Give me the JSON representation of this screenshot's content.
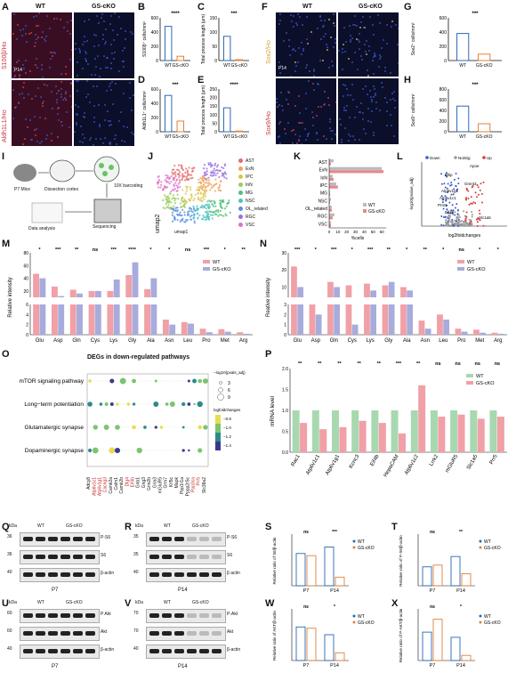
{
  "panel_letters": [
    "A",
    "B",
    "C",
    "D",
    "E",
    "F",
    "G",
    "H",
    "I",
    "J",
    "K",
    "L",
    "M",
    "N",
    "O",
    "P",
    "Q",
    "R",
    "S",
    "T",
    "U",
    "V",
    "W",
    "X"
  ],
  "groups": {
    "wt": "WT",
    "cko": "GS-cKO"
  },
  "colors": {
    "wt": "#5ba874",
    "cko": "#e48a8f",
    "wt_bar": "#f0a0a6",
    "cko_bar": "#a7acdc",
    "stain_red": "#c8303a",
    "stain_blue": "#2c4aa8"
  },
  "panel_a": {
    "age": "P14",
    "row1_label": "S100β/Ho",
    "row2_label": "Aldh1L1/Ho"
  },
  "panel_f": {
    "age": "P14",
    "row1_label": "Sox2/Ho",
    "row2_label": "Sox9/Ho"
  },
  "panel_i": {
    "mice": "P7 Mice",
    "dissection": "Dissection cortex",
    "barcoding": "10X barcoding",
    "sequencing": "Sequencing",
    "analysis": "Data analysis"
  },
  "panel_j": {
    "axis_x": "umap1",
    "axis_y": "umap2",
    "clusters": [
      "AST",
      "ExN",
      "IPC",
      "InN",
      "MG",
      "NSC",
      "OL_related",
      "RGC",
      "VSC"
    ],
    "cluster_colors": [
      "#e46b6b",
      "#f0a35a",
      "#d8c84a",
      "#9ccc5a",
      "#4fbf7a",
      "#4bc2c2",
      "#5a8fe0",
      "#9a6fe0",
      "#e070c8"
    ]
  },
  "panel_k": {
    "xlabel": "%cells",
    "ticks": [
      "0",
      "10",
      "20",
      "30",
      "40",
      "50",
      "60"
    ],
    "legend": [
      "WT",
      "GS-cKO"
    ],
    "categories": [
      "AST",
      "ExN",
      "InN",
      "IPC",
      "MG",
      "NSC",
      "OL_related",
      "RGC",
      "VSC"
    ]
  },
  "panel_l": {
    "legend": [
      "Down",
      "NotSig",
      "Up"
    ],
    "xlabel": "log2foldchanges",
    "ylabel": "-log10(pvalue_adj)",
    "genes": [
      "Apoe",
      "Bllip",
      "Gmnt3",
      "Atp6v1g1",
      "Atp6v1c1",
      "Prm5",
      "Eif4b",
      "Slc1a5"
    ]
  },
  "panel_m": {
    "ylabel": "Relative intensity",
    "legend": [
      "WT",
      "GS-cKO"
    ],
    "categories": [
      "Glu",
      "Asp",
      "Gln",
      "Cys",
      "Lys",
      "Gly",
      "Ala",
      "Asn",
      "Leu",
      "Pro",
      "Met",
      "Arg"
    ],
    "sig": [
      "*",
      "***",
      "**",
      "ns",
      "***",
      "****",
      "*",
      "*",
      "ns",
      "***",
      "*",
      "**"
    ],
    "yticks_top": [
      "20",
      "40",
      "60",
      "80"
    ],
    "yticks_bottom": [
      "0",
      "2",
      "4",
      "6"
    ]
  },
  "panel_n": {
    "ylabel": "Reative intensity",
    "legend": [
      "WT",
      "GS-cKO"
    ],
    "categories": [
      "Glu",
      "Asp",
      "Gln",
      "Cys",
      "Lys",
      "Gly",
      "Ala",
      "Asn",
      "Leu",
      "Pro",
      "Met",
      "Arg"
    ],
    "sig": [
      "***",
      "*",
      "***",
      "*",
      "***",
      "**",
      "*",
      "**",
      "*",
      "ns",
      "*",
      "*"
    ],
    "yticks_top": [
      "10",
      "20",
      "30"
    ],
    "yticks_bottom": [
      "0",
      "1",
      "2",
      "3"
    ]
  },
  "panel_o": {
    "title": "DEGs in down-regulated pathways",
    "pathways": [
      "mTOR signaling pathway",
      "Long−term potentiation",
      "Glutamatergic synapse",
      "Dopaminergic synapse"
    ],
    "genes": [
      "Adcy8",
      "Atp6v1c1",
      "Atp6v1g1",
      "Cacng3",
      "Camk2a",
      "Calm1",
      "Camk2b",
      "Dlg4",
      "Eif4b",
      "Gnb1",
      "Gng3",
      "Grin2b",
      "Gria3",
      "mGluR5",
      "Grm7",
      "Kif5c",
      "Mapk",
      "Ppp1r1a",
      "Pppp2r5c",
      "Ppp3ca",
      "Prr5",
      "Slc38a2"
    ],
    "red_genes": [
      "Atp6v1c1",
      "Atp6v1g1",
      "Cacng3",
      "Dlg4",
      "Eif4b",
      "Prr5",
      "Ppp3ca"
    ],
    "size_legend_title": "−log10(pvals_adj)",
    "size_legend": [
      "3",
      "6",
      "9"
    ],
    "color_legend_title": "logfoldchanges",
    "color_legend": [
      "−0.8",
      "−1.0",
      "−1.2",
      "−1.4"
    ]
  },
  "panel_p": {
    "ylabel": "mRNA level",
    "legend": [
      "WT",
      "GS-cKO"
    ],
    "genes": [
      "Rac1",
      "Atp6v1c1",
      "Atp6v1g1",
      "Kcnc3",
      "Eif4b",
      "HepaCAM",
      "Atp6v1c2",
      "Lrrk2",
      "mGluR5",
      "Slc1a5",
      "Prr5"
    ],
    "sig": [
      "**",
      "**",
      "**",
      "**",
      "**",
      "***",
      "**",
      "ns",
      "ns",
      "ns",
      "ns"
    ],
    "yticks": [
      "0.0",
      "0.5",
      "1.0",
      "1.5",
      "2.0"
    ]
  },
  "blots": {
    "q": {
      "age": "P7",
      "kda": "kDa",
      "bands": [
        {
          "kda": "36",
          "name": "P-S6"
        },
        {
          "kda": "36",
          "name": "S6"
        },
        {
          "kda": "40",
          "name": "β-actin"
        }
      ]
    },
    "r": {
      "age": "P14",
      "kda": "kDa",
      "bands": [
        {
          "kda": "35",
          "name": "P-S6"
        },
        {
          "kda": "35",
          "name": "S6"
        },
        {
          "kda": "40",
          "name": "β actin"
        }
      ]
    },
    "u": {
      "age": "P7",
      "kda": "kDa",
      "bands": [
        {
          "kda": "60",
          "name": "P Akt"
        },
        {
          "kda": "60",
          "name": "Akt"
        },
        {
          "kda": "40",
          "name": "β-actin"
        }
      ]
    },
    "v": {
      "age": "P14",
      "kda": "kDa",
      "bands": [
        {
          "kda": "70",
          "name": "P-Akt"
        },
        {
          "kda": "70",
          "name": "Akt"
        },
        {
          "kda": "40",
          "name": "β-actin"
        }
      ]
    }
  },
  "chart_data": [
    {
      "panel": "B",
      "type": "bar",
      "ylabel": "S100β⁺ cells/mm²",
      "categories": [
        "WT",
        "GS-cKO"
      ],
      "values": [
        480,
        60
      ],
      "ylim": [
        0,
        600
      ],
      "yticks": [
        "0",
        "200",
        "400",
        "600"
      ],
      "sig": "****"
    },
    {
      "panel": "C",
      "type": "bar",
      "ylabel": "Total process length (μm)",
      "categories": [
        "WT",
        "GS-cKO"
      ],
      "values": [
        85,
        3
      ],
      "ylim": [
        0,
        150
      ],
      "yticks": [
        "0",
        "50",
        "100",
        "150"
      ],
      "sig": "***"
    },
    {
      "panel": "D",
      "type": "bar",
      "ylabel": "Aldh1L1⁺ cells/mm²",
      "categories": [
        "WT",
        "GS-cKO"
      ],
      "values": [
        510,
        150
      ],
      "ylim": [
        0,
        600
      ],
      "yticks": [
        "0",
        "200",
        "400",
        "600"
      ],
      "sig": "***"
    },
    {
      "panel": "E",
      "type": "bar",
      "ylabel": "Total process length (μm)",
      "categories": [
        "WT",
        "GS-cKO"
      ],
      "values": [
        140,
        4
      ],
      "ylim": [
        0,
        250
      ],
      "yticks": [
        "0",
        "50",
        "100",
        "150",
        "200",
        "250"
      ],
      "sig": "****"
    },
    {
      "panel": "G",
      "type": "bar",
      "ylabel": "Sox2⁺ cells/mm²",
      "categories": [
        "WT",
        "GS-cKO"
      ],
      "values": [
        380,
        90
      ],
      "ylim": [
        0,
        600
      ],
      "yticks": [
        "0",
        "200",
        "400",
        "600"
      ],
      "sig": "***"
    },
    {
      "panel": "H",
      "type": "bar",
      "ylabel": "Sox9⁺ cells/mm²",
      "categories": [
        "WT",
        "GS-cKO"
      ],
      "values": [
        480,
        150
      ],
      "ylim": [
        0,
        800
      ],
      "yticks": [
        "0",
        "200",
        "400",
        "600",
        "800"
      ],
      "sig": "***"
    },
    {
      "panel": "K",
      "type": "bar",
      "orientation": "horizontal",
      "xlabel": "%cells",
      "categories": [
        "AST",
        "ExN",
        "InN",
        "IPC",
        "MG",
        "NSC",
        "OL_related",
        "RGC",
        "VSC"
      ],
      "series": [
        {
          "name": "WT",
          "values": [
            5,
            60,
            4,
            8,
            1,
            2,
            3,
            6,
            2
          ]
        },
        {
          "name": "GS-cKO",
          "values": [
            2,
            62,
            5,
            10,
            1,
            1,
            3,
            4,
            2
          ]
        }
      ],
      "xlim": [
        0,
        65
      ]
    },
    {
      "panel": "M",
      "type": "bar",
      "ylabel": "Relative intensity",
      "categories": [
        "Glu",
        "Asp",
        "Gln",
        "Cys",
        "Lys",
        "Gly",
        "Ala",
        "Asn",
        "Leu",
        "Pro",
        "Met",
        "Arg"
      ],
      "series": [
        {
          "name": "WT",
          "values": [
            47,
            27,
            22,
            20,
            20,
            45,
            23,
            3.0,
            2.5,
            1.2,
            1.1,
            0.5
          ]
        },
        {
          "name": "GS-cKO",
          "values": [
            40,
            12,
            16,
            20,
            38,
            65,
            40,
            2.0,
            2.2,
            0.5,
            0.6,
            0.2
          ]
        }
      ]
    },
    {
      "panel": "N",
      "type": "bar",
      "ylabel": "Reative intensity",
      "categories": [
        "Glu",
        "Asp",
        "Gln",
        "Cys",
        "Lys",
        "Gly",
        "Ala",
        "Asn",
        "Leu",
        "Pro",
        "Met",
        "Arg"
      ],
      "series": [
        {
          "name": "WT",
          "values": [
            22,
            3.0,
            13,
            11,
            12,
            11,
            10,
            1.4,
            2.0,
            0.6,
            0.5,
            0.2
          ]
        },
        {
          "name": "GS-cKO",
          "values": [
            10,
            2.0,
            10,
            1.0,
            8,
            13,
            8,
            0.6,
            1.5,
            0.3,
            0.2,
            0.1
          ]
        }
      ]
    },
    {
      "panel": "P",
      "type": "bar",
      "ylabel": "mRNA level",
      "categories": [
        "Rac1",
        "Atp6v1c1",
        "Atp6v1g1",
        "Kcnc3",
        "Eif4b",
        "HepaCAM",
        "Atp6v1c2",
        "Lrrk2",
        "mGluR5",
        "Slc1a5",
        "Prr5"
      ],
      "series": [
        {
          "name": "WT",
          "values": [
            1,
            1,
            1,
            1,
            1,
            1,
            1,
            1,
            1,
            1,
            1
          ]
        },
        {
          "name": "GS-cKO",
          "values": [
            0.7,
            0.55,
            0.6,
            0.75,
            0.7,
            0.45,
            1.6,
            0.85,
            0.9,
            0.8,
            0.85
          ]
        }
      ],
      "ylim": [
        0,
        2.0
      ]
    },
    {
      "panel": "S",
      "type": "bar",
      "ylabel": "Relative ratio of S6/β-actin",
      "categories": [
        "P7",
        "P14"
      ],
      "series": [
        {
          "name": "WT",
          "values": [
            0.75,
            0.9
          ]
        },
        {
          "name": "GS-cKO",
          "values": [
            0.7,
            0.2
          ]
        }
      ],
      "ylim": [
        0,
        1.2
      ],
      "sig": [
        "ns",
        "***"
      ]
    },
    {
      "panel": "T",
      "type": "bar",
      "ylabel": "Relative ratio of P-S6/β-actin",
      "categories": [
        "P7",
        "P14"
      ],
      "series": [
        {
          "name": "WT",
          "values": [
            0.55,
            0.85
          ]
        },
        {
          "name": "GS-cKO",
          "values": [
            0.6,
            0.35
          ]
        }
      ],
      "ylim": [
        0,
        1.5
      ],
      "sig": [
        "ns",
        "**"
      ]
    },
    {
      "panel": "W",
      "type": "bar",
      "ylabel": "Relative ratio of AKT/β-actin",
      "categories": [
        "P7",
        "P14"
      ],
      "series": [
        {
          "name": "WT",
          "values": [
            1.3,
            1.0
          ]
        },
        {
          "name": "GS-cKO",
          "values": [
            1.25,
            0.3
          ]
        }
      ],
      "ylim": [
        0,
        2.0
      ],
      "sig": [
        "ns",
        "*"
      ]
    },
    {
      "panel": "X",
      "type": "bar",
      "ylabel": "Relative ratio of P-AKT/β-actin",
      "categories": [
        "P7",
        "P14"
      ],
      "series": [
        {
          "name": "WT",
          "values": [
            1.1,
            0.9
          ]
        },
        {
          "name": "GS-cKO",
          "values": [
            1.6,
            0.2
          ]
        }
      ],
      "ylim": [
        0,
        2.0
      ],
      "sig": [
        "ns",
        "*"
      ]
    }
  ]
}
